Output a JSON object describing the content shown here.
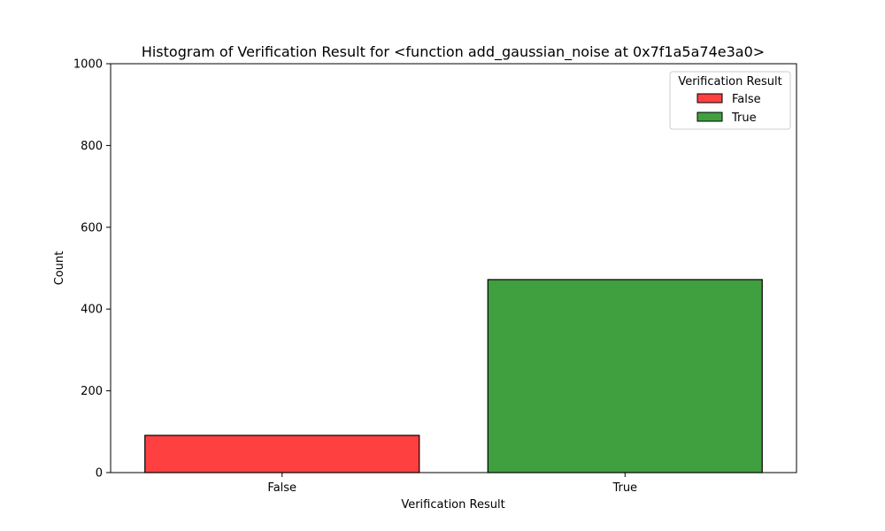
{
  "chart_data": {
    "type": "bar",
    "title": "Histogram of Verification Result for <function add_gaussian_noise at 0x7f1a5a74e3a0>",
    "xlabel": "Verification Result",
    "ylabel": "Count",
    "categories": [
      "False",
      "True"
    ],
    "values": [
      91,
      472
    ],
    "colors": [
      "#ff4040",
      "#40a040"
    ],
    "ylim": [
      0,
      1000
    ],
    "yticks": [
      0,
      200,
      400,
      600,
      800,
      1000
    ],
    "grid": false,
    "legend": {
      "title": "Verification Result",
      "placement": "top-right",
      "entries": [
        {
          "label": "False",
          "color": "#ff4040"
        },
        {
          "label": "True",
          "color": "#40a040"
        }
      ]
    }
  }
}
